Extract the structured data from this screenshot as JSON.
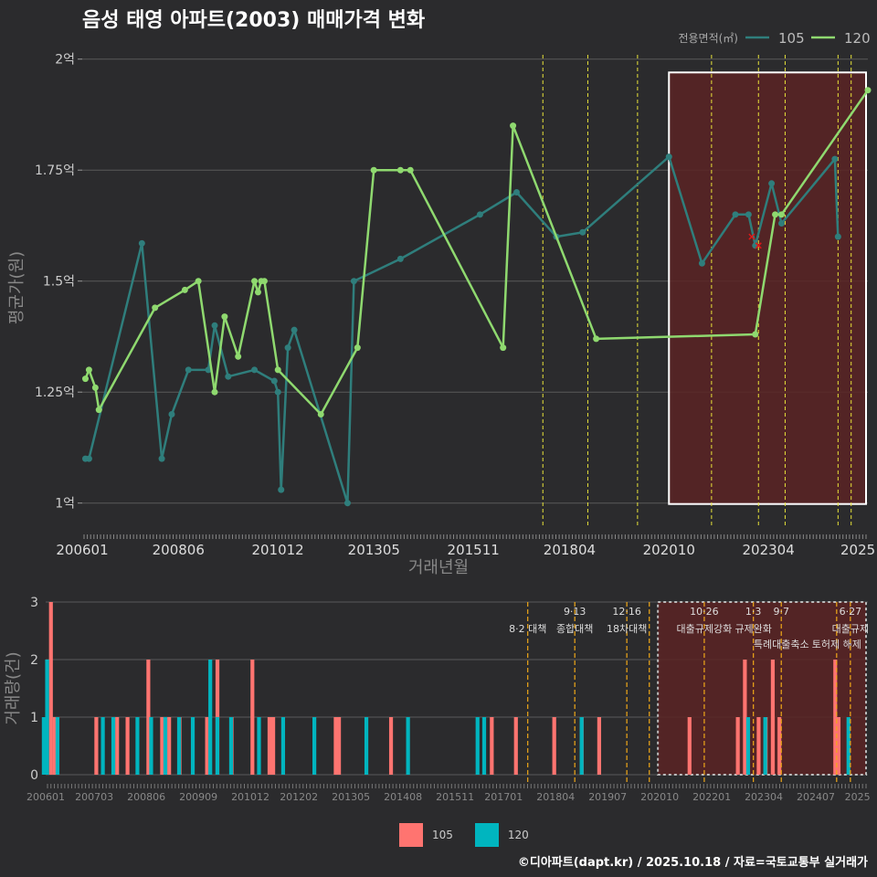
{
  "title": "음성 태영 아파트(2003) 매매가격 변화",
  "footer": "©디아파트(dapt.kr) / 2025.10.18 / 자료=국토교통부 실거래가",
  "colors": {
    "background": "#2b2b2d",
    "price_105": "#2f7e7c",
    "price_120": "#8fd96f",
    "vol_105": "#ff7470",
    "vol_120": "#00b5bf",
    "event_line": "#e8e33a",
    "event_line_bottom": "#f0a818",
    "shade": "#5a2324",
    "grid": "#5a5a5a"
  },
  "chart_data": [
    {
      "type": "line",
      "title": "",
      "xlabel": "거래년월",
      "ylabel": "평균가(원)",
      "ylim": [
        95000000,
        202000000
      ],
      "yticks": [
        {
          "value": 100000000,
          "label": "1억"
        },
        {
          "value": 125000000,
          "label": "1.25억"
        },
        {
          "value": 150000000,
          "label": "1.5억"
        },
        {
          "value": 175000000,
          "label": "1.75억"
        },
        {
          "value": 200000000,
          "label": "2억"
        }
      ],
      "xlim": [
        2006.0,
        2025.75
      ],
      "xticks": [
        {
          "value": 2006.0,
          "label": "200601"
        },
        {
          "value": 2008.417,
          "label": "200806"
        },
        {
          "value": 2010.917,
          "label": "201012"
        },
        {
          "value": 2013.333,
          "label": "201305"
        },
        {
          "value": 2015.833,
          "label": "201511"
        },
        {
          "value": 2018.25,
          "label": "201804"
        },
        {
          "value": 2020.75,
          "label": "202010"
        },
        {
          "value": 2023.25,
          "label": "202304"
        },
        {
          "value": 2025.5,
          "label": "2025"
        }
      ],
      "legend_title": "전용면적(㎡)",
      "legend_position": "top-right",
      "event_lines": [
        2017.58,
        2018.71,
        2019.96,
        2021.82,
        2023.0,
        2023.67,
        2025.0,
        2025.33
      ],
      "shaded_range": [
        2020.75,
        2025.75
      ],
      "series": [
        {
          "name": "105",
          "x": [
            2006.08,
            2006.17,
            2007.5,
            2008.0,
            2008.25,
            2008.67,
            2009.17,
            2009.33,
            2009.67,
            2010.33,
            2010.83,
            2010.92,
            2011.0,
            2011.17,
            2011.33,
            2012.67,
            2012.83,
            2014.0,
            2016.0,
            2016.92,
            2017.92,
            2018.58,
            2020.75,
            2021.58,
            2022.42,
            2022.75,
            2022.92,
            2023.33,
            2023.58,
            2024.92,
            2025.0
          ],
          "y": [
            110000000,
            110000000,
            158500000,
            110000000,
            120000000,
            130000000,
            130000000,
            140000000,
            128500000,
            130000000,
            127500000,
            125000000,
            103000000,
            135000000,
            139000000,
            100000000,
            150000000,
            155000000,
            165000000,
            170000000,
            160000000,
            161000000,
            178000000,
            154000000,
            165000000,
            165000000,
            158000000,
            172000000,
            163000000,
            177500000,
            160000000
          ]
        },
        {
          "name": "120",
          "x": [
            2006.08,
            2006.17,
            2006.33,
            2006.42,
            2007.83,
            2008.58,
            2008.92,
            2009.33,
            2009.58,
            2009.92,
            2010.33,
            2010.42,
            2010.5,
            2010.58,
            2010.92,
            2012.0,
            2012.92,
            2013.33,
            2014.0,
            2014.25,
            2016.58,
            2016.83,
            2018.92,
            2022.92,
            2023.42,
            2023.58,
            2025.75
          ],
          "y": [
            128000000,
            130000000,
            126000000,
            121000000,
            144000000,
            148000000,
            150000000,
            125000000,
            142000000,
            133000000,
            150000000,
            147500000,
            150000000,
            150000000,
            130000000,
            120000000,
            135000000,
            175000000,
            175000000,
            175000000,
            135000000,
            185000000,
            137000000,
            138000000,
            165000000,
            165000000,
            193000000
          ]
        }
      ],
      "red_markers": [
        {
          "x": 2022.83,
          "y": 160000000
        },
        {
          "x": 2023.0,
          "y": 158000000
        }
      ]
    },
    {
      "type": "bar",
      "title": "",
      "xlabel": "",
      "ylabel": "거래량(건)",
      "ylim": [
        0,
        3
      ],
      "yticks": [
        0,
        1,
        2,
        3
      ],
      "xlim": [
        2006.0,
        2025.75
      ],
      "xticks": [
        {
          "value": 2006.0,
          "label": "200601"
        },
        {
          "value": 2007.167,
          "label": "200703"
        },
        {
          "value": 2008.417,
          "label": "200806"
        },
        {
          "value": 2009.667,
          "label": "200909"
        },
        {
          "value": 2010.917,
          "label": "201012"
        },
        {
          "value": 2012.083,
          "label": "201202"
        },
        {
          "value": 2013.333,
          "label": "201305"
        },
        {
          "value": 2014.583,
          "label": "201408"
        },
        {
          "value": 2015.833,
          "label": "201511"
        },
        {
          "value": 2017.0,
          "label": "201701"
        },
        {
          "value": 2018.25,
          "label": "201804"
        },
        {
          "value": 2019.5,
          "label": "201907"
        },
        {
          "value": 2020.75,
          "label": "202010"
        },
        {
          "value": 2022.0,
          "label": "202201"
        },
        {
          "value": 2023.25,
          "label": "202304"
        },
        {
          "value": 2024.5,
          "label": "202407"
        },
        {
          "value": 2025.5,
          "label": "2025"
        }
      ],
      "event_lines": [
        {
          "x": 2017.58,
          "date": "",
          "label": "8·2 대책"
        },
        {
          "x": 2018.71,
          "date": "9·13",
          "label": "종합대책"
        },
        {
          "x": 2019.96,
          "date": "12·16",
          "label": "18차대책"
        },
        {
          "x": 2020.5,
          "date": "",
          "label": ""
        },
        {
          "x": 2021.82,
          "date": "10·26",
          "label": "대출규제강화"
        },
        {
          "x": 2023.0,
          "date": "1·3",
          "label": "규제완화"
        },
        {
          "x": 2023.67,
          "date": "9·7",
          "label": "특례대출축소"
        },
        {
          "x": 2025.0,
          "date": "",
          "label": "토허제 해제"
        },
        {
          "x": 2025.33,
          "date": "6·27",
          "label": "대출규제"
        }
      ],
      "shaded_range": [
        2020.75,
        2025.75
      ],
      "series": [
        {
          "name": "105",
          "x": [
            2006.08,
            2006.17,
            2007.17,
            2007.67,
            2007.92,
            2008.42,
            2008.75,
            2008.92,
            2009.17,
            2009.83,
            2010.08,
            2010.42,
            2010.92,
            2011.33,
            2011.42,
            2012.92,
            2013.0,
            2014.25,
            2016.67,
            2017.25,
            2018.17,
            2018.83,
            2019.25,
            2021.42,
            2022.58,
            2022.75,
            2023.08,
            2023.25,
            2023.42,
            2023.58,
            2024.92,
            2025.0
          ],
          "values": [
            3,
            1,
            1,
            1,
            1,
            2,
            1,
            1,
            1,
            1,
            2,
            1,
            2,
            1,
            1,
            1,
            1,
            1,
            1,
            1,
            1,
            1,
            1,
            1,
            1,
            2,
            1,
            1,
            2,
            1,
            2,
            1
          ]
        },
        {
          "name": "120",
          "x": [
            2006.0,
            2006.08,
            2006.33,
            2007.42,
            2007.67,
            2008.25,
            2008.58,
            2008.92,
            2009.25,
            2009.58,
            2010.0,
            2010.17,
            2010.5,
            2011.17,
            2011.75,
            2012.5,
            2013.75,
            2014.75,
            2016.42,
            2016.58,
            2018.92,
            2022.92,
            2023.33,
            2025.33
          ],
          "values": [
            1,
            2,
            1,
            1,
            1,
            1,
            1,
            1,
            1,
            1,
            2,
            1,
            1,
            1,
            1,
            1,
            1,
            1,
            1,
            1,
            1,
            1,
            1,
            1
          ]
        }
      ],
      "legend": [
        {
          "name": "105",
          "color": "#ff7470"
        },
        {
          "name": "120",
          "color": "#00b5bf"
        }
      ],
      "legend_position": "bottom-center"
    }
  ]
}
